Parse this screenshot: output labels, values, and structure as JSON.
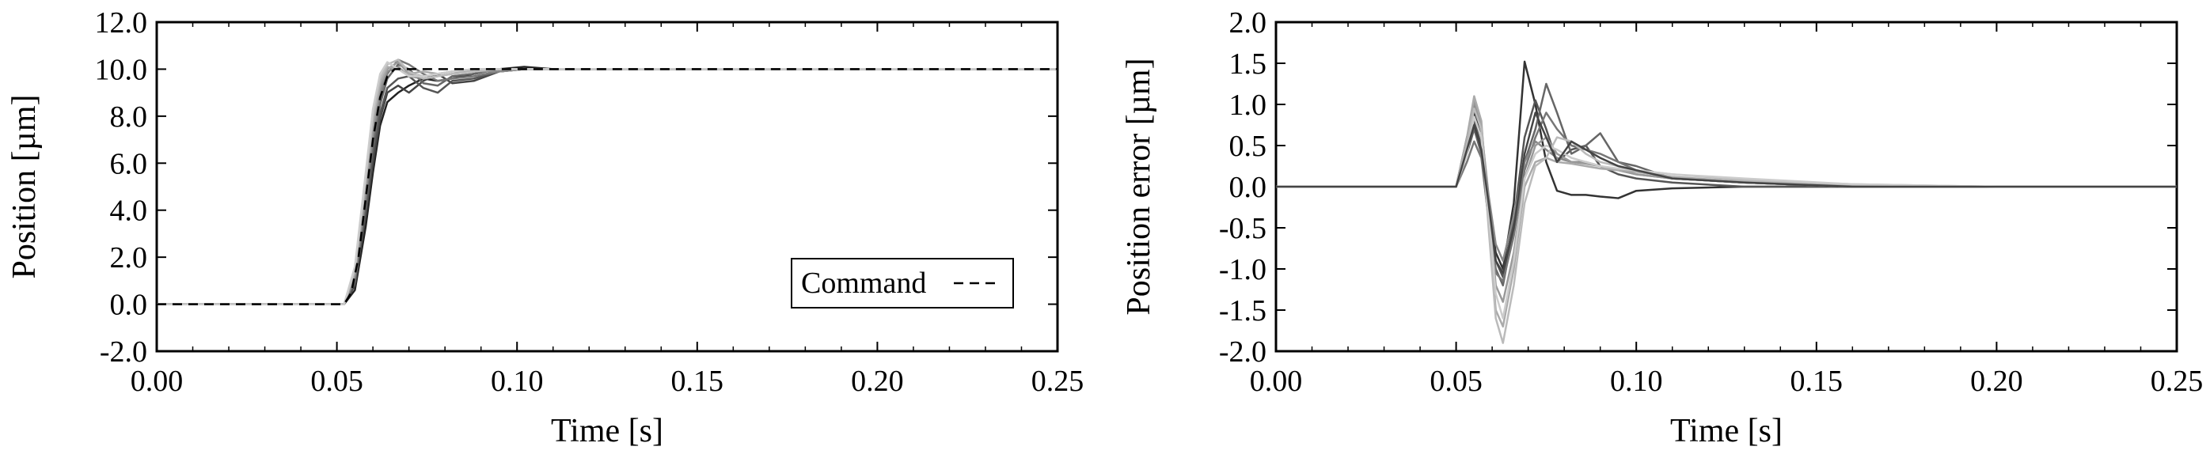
{
  "chart_data": [
    {
      "type": "line",
      "title": "",
      "xlabel": "Time [s]",
      "ylabel": "Position [µm]",
      "xlim": [
        0.0,
        0.25
      ],
      "ylim": [
        -2.0,
        12.0
      ],
      "x_ticks": [
        "0.00",
        "0.05",
        "0.10",
        "0.15",
        "0.20",
        "0.25"
      ],
      "x_tick_values": [
        0.0,
        0.05,
        0.1,
        0.15,
        0.2,
        0.25
      ],
      "y_ticks": [
        "-2.0",
        "0.0",
        "2.0",
        "4.0",
        "6.0",
        "8.0",
        "10.0",
        "12.0"
      ],
      "y_tick_values": [
        -2.0,
        0.0,
        2.0,
        4.0,
        6.0,
        8.0,
        10.0,
        12.0
      ],
      "grid": false,
      "legend": {
        "position": "bottom-right",
        "entries": [
          {
            "label": "Command",
            "style": "dashed"
          }
        ]
      },
      "command": {
        "style": "dashed",
        "x": [
          0.0,
          0.052,
          0.054,
          0.056,
          0.058,
          0.06,
          0.062,
          0.064,
          0.066,
          0.25
        ],
        "y": [
          0.0,
          0.0,
          0.5,
          2.0,
          4.5,
          7.0,
          8.8,
          9.7,
          10.0,
          10.0
        ]
      },
      "series": [
        {
          "color": "#222222",
          "x": [
            0.0,
            0.052,
            0.055,
            0.058,
            0.06,
            0.062,
            0.064,
            0.067,
            0.07,
            0.074,
            0.078,
            0.082,
            0.088,
            0.095,
            0.102,
            0.11,
            0.12,
            0.25
          ],
          "y": [
            0.0,
            0.0,
            0.6,
            3.3,
            5.6,
            7.6,
            8.6,
            9.0,
            9.3,
            9.6,
            9.5,
            9.6,
            9.8,
            10.0,
            10.1,
            10.0,
            10.0,
            10.0
          ]
        },
        {
          "color": "#444444",
          "x": [
            0.0,
            0.052,
            0.055,
            0.058,
            0.06,
            0.062,
            0.064,
            0.067,
            0.07,
            0.074,
            0.078,
            0.082,
            0.088,
            0.095,
            0.102,
            0.11,
            0.12,
            0.25
          ],
          "y": [
            0.0,
            0.0,
            0.8,
            3.8,
            6.0,
            7.9,
            9.0,
            9.3,
            9.0,
            9.5,
            9.8,
            9.4,
            9.5,
            9.9,
            10.0,
            10.0,
            10.0,
            10.0
          ]
        },
        {
          "color": "#555555",
          "x": [
            0.0,
            0.052,
            0.055,
            0.058,
            0.06,
            0.062,
            0.064,
            0.067,
            0.07,
            0.074,
            0.078,
            0.082,
            0.088,
            0.095,
            0.102,
            0.11,
            0.12,
            0.25
          ],
          "y": [
            0.0,
            0.0,
            0.9,
            4.0,
            6.4,
            8.1,
            9.2,
            9.6,
            9.7,
            9.2,
            9.0,
            9.5,
            9.6,
            9.9,
            10.0,
            10.0,
            10.0,
            10.0
          ]
        },
        {
          "color": "#666666",
          "x": [
            0.0,
            0.052,
            0.055,
            0.058,
            0.06,
            0.062,
            0.064,
            0.067,
            0.07,
            0.074,
            0.078,
            0.082,
            0.088,
            0.095,
            0.102,
            0.11,
            0.12,
            0.25
          ],
          "y": [
            0.0,
            0.0,
            1.0,
            4.3,
            6.7,
            8.5,
            9.6,
            10.2,
            10.0,
            9.4,
            9.3,
            9.7,
            9.8,
            10.0,
            10.0,
            10.0,
            10.0,
            10.0
          ]
        },
        {
          "color": "#777777",
          "x": [
            0.0,
            0.052,
            0.055,
            0.058,
            0.06,
            0.062,
            0.064,
            0.067,
            0.07,
            0.074,
            0.078,
            0.082,
            0.088,
            0.095,
            0.102,
            0.11,
            0.12,
            0.25
          ],
          "y": [
            0.0,
            0.0,
            1.1,
            4.5,
            7.0,
            8.8,
            9.8,
            10.4,
            10.2,
            9.8,
            9.5,
            9.6,
            9.7,
            9.9,
            10.0,
            10.0,
            10.0,
            10.0
          ]
        },
        {
          "color": "#888888",
          "x": [
            0.0,
            0.052,
            0.055,
            0.058,
            0.06,
            0.062,
            0.064,
            0.067,
            0.07,
            0.074,
            0.078,
            0.082,
            0.088,
            0.095,
            0.102,
            0.11,
            0.12,
            0.25
          ],
          "y": [
            0.0,
            0.0,
            1.2,
            4.7,
            7.2,
            9.0,
            9.9,
            10.1,
            9.7,
            9.6,
            9.7,
            9.8,
            9.9,
            9.9,
            10.0,
            10.0,
            10.0,
            10.0
          ]
        },
        {
          "color": "#999999",
          "x": [
            0.0,
            0.052,
            0.055,
            0.058,
            0.06,
            0.062,
            0.064,
            0.067,
            0.07,
            0.074,
            0.078,
            0.082,
            0.088,
            0.095,
            0.102,
            0.11,
            0.12,
            0.25
          ],
          "y": [
            0.0,
            0.0,
            1.3,
            5.0,
            7.5,
            9.2,
            10.0,
            10.3,
            9.8,
            9.7,
            9.8,
            9.9,
            9.9,
            10.0,
            10.0,
            10.0,
            10.0,
            10.0
          ]
        },
        {
          "color": "#aaaaaa",
          "x": [
            0.0,
            0.052,
            0.055,
            0.058,
            0.06,
            0.062,
            0.064,
            0.067,
            0.07,
            0.074,
            0.078,
            0.082,
            0.088,
            0.095,
            0.102,
            0.11,
            0.12,
            0.25
          ],
          "y": [
            0.0,
            0.0,
            1.4,
            5.2,
            7.8,
            9.4,
            10.1,
            10.0,
            9.8,
            9.9,
            9.8,
            9.9,
            10.0,
            10.0,
            10.0,
            10.0,
            10.0,
            10.0
          ]
        },
        {
          "color": "#bbbbbb",
          "x": [
            0.0,
            0.052,
            0.055,
            0.058,
            0.06,
            0.062,
            0.064,
            0.067,
            0.07,
            0.074,
            0.078,
            0.082,
            0.088,
            0.095,
            0.102,
            0.11,
            0.12,
            0.25
          ],
          "y": [
            0.0,
            0.0,
            1.5,
            5.4,
            8.0,
            9.6,
            10.2,
            10.4,
            9.9,
            9.6,
            9.7,
            9.8,
            9.9,
            10.0,
            10.0,
            10.0,
            10.0,
            10.0
          ]
        },
        {
          "color": "#cccccc",
          "x": [
            0.0,
            0.052,
            0.055,
            0.058,
            0.06,
            0.062,
            0.064,
            0.067,
            0.07,
            0.074,
            0.078,
            0.082,
            0.088,
            0.095,
            0.102,
            0.11,
            0.12,
            0.25
          ],
          "y": [
            0.0,
            0.0,
            1.6,
            5.6,
            8.3,
            9.8,
            10.3,
            10.0,
            9.7,
            9.7,
            9.8,
            9.9,
            10.0,
            10.0,
            10.0,
            10.0,
            10.0,
            10.0
          ]
        }
      ]
    },
    {
      "type": "line",
      "title": "",
      "xlabel": "Time [s]",
      "ylabel": "Position error [µm]",
      "xlim": [
        0.0,
        0.25
      ],
      "ylim": [
        -2.0,
        2.0
      ],
      "x_ticks": [
        "0.00",
        "0.05",
        "0.10",
        "0.15",
        "0.20",
        "0.25"
      ],
      "x_tick_values": [
        0.0,
        0.05,
        0.1,
        0.15,
        0.2,
        0.25
      ],
      "y_ticks": [
        "-2.0",
        "-1.5",
        "-1.0",
        "-0.5",
        "0.0",
        "0.5",
        "1.0",
        "1.5",
        "2.0"
      ],
      "y_tick_values": [
        -2.0,
        -1.5,
        -1.0,
        -0.5,
        0.0,
        0.5,
        1.0,
        1.5,
        2.0
      ],
      "grid": false,
      "series": [
        {
          "color": "#333333",
          "x": [
            0.0,
            0.05,
            0.053,
            0.055,
            0.057,
            0.059,
            0.061,
            0.063,
            0.066,
            0.069,
            0.072,
            0.075,
            0.078,
            0.082,
            0.086,
            0.09,
            0.095,
            0.1,
            0.11,
            0.13,
            0.16,
            0.2,
            0.25
          ],
          "y": [
            0.0,
            0.0,
            0.6,
            0.9,
            0.6,
            -0.2,
            -0.8,
            -1.0,
            -0.2,
            1.52,
            1.0,
            0.3,
            -0.05,
            -0.1,
            -0.1,
            -0.12,
            -0.14,
            -0.05,
            -0.02,
            0.0,
            0.0,
            0.0,
            0.0
          ]
        },
        {
          "color": "#555555",
          "x": [
            0.0,
            0.05,
            0.053,
            0.055,
            0.057,
            0.059,
            0.061,
            0.063,
            0.066,
            0.069,
            0.072,
            0.075,
            0.078,
            0.082,
            0.086,
            0.09,
            0.095,
            0.1,
            0.11,
            0.13,
            0.16,
            0.2,
            0.25
          ],
          "y": [
            0.0,
            0.0,
            0.5,
            0.8,
            0.5,
            -0.3,
            -0.9,
            -1.1,
            -0.4,
            0.6,
            1.05,
            0.7,
            0.3,
            0.45,
            0.5,
            0.25,
            0.15,
            0.1,
            0.05,
            0.0,
            0.0,
            0.0,
            0.0
          ]
        },
        {
          "color": "#666666",
          "x": [
            0.0,
            0.05,
            0.053,
            0.055,
            0.057,
            0.059,
            0.061,
            0.063,
            0.066,
            0.069,
            0.072,
            0.075,
            0.078,
            0.082,
            0.086,
            0.09,
            0.095,
            0.1,
            0.11,
            0.13,
            0.16,
            0.2,
            0.25
          ],
          "y": [
            0.0,
            0.0,
            0.4,
            0.7,
            0.4,
            -0.4,
            -1.0,
            -1.2,
            -0.5,
            0.3,
            0.7,
            1.25,
            0.9,
            0.4,
            0.5,
            0.65,
            0.3,
            0.25,
            0.1,
            0.05,
            0.0,
            0.0,
            0.0
          ]
        },
        {
          "color": "#777777",
          "x": [
            0.0,
            0.05,
            0.053,
            0.055,
            0.057,
            0.059,
            0.061,
            0.063,
            0.066,
            0.069,
            0.072,
            0.075,
            0.078,
            0.082,
            0.086,
            0.09,
            0.095,
            0.1,
            0.11,
            0.13,
            0.16,
            0.2,
            0.25
          ],
          "y": [
            0.0,
            0.0,
            0.3,
            0.55,
            0.35,
            -0.4,
            -1.05,
            -1.15,
            -0.6,
            0.2,
            0.6,
            0.9,
            0.7,
            0.5,
            0.45,
            0.4,
            0.3,
            0.2,
            0.1,
            0.05,
            0.0,
            0.0,
            0.0
          ]
        },
        {
          "color": "#888888",
          "x": [
            0.0,
            0.05,
            0.053,
            0.055,
            0.057,
            0.059,
            0.061,
            0.063,
            0.066,
            0.069,
            0.072,
            0.075,
            0.078,
            0.082,
            0.086,
            0.09,
            0.095,
            0.1,
            0.11,
            0.13,
            0.16,
            0.2,
            0.25
          ],
          "y": [
            0.0,
            0.0,
            0.5,
            1.0,
            0.7,
            -0.1,
            -0.7,
            -0.9,
            -0.35,
            0.3,
            0.55,
            0.45,
            0.35,
            0.3,
            0.3,
            0.25,
            0.2,
            0.15,
            0.1,
            0.05,
            0.0,
            0.0,
            0.0
          ]
        },
        {
          "color": "#999999",
          "x": [
            0.0,
            0.05,
            0.053,
            0.055,
            0.057,
            0.059,
            0.061,
            0.063,
            0.066,
            0.069,
            0.072,
            0.075,
            0.078,
            0.082,
            0.086,
            0.09,
            0.095,
            0.1,
            0.11,
            0.13,
            0.16,
            0.2,
            0.25
          ],
          "y": [
            0.0,
            0.0,
            0.55,
            1.05,
            0.75,
            -0.2,
            -1.2,
            -1.4,
            -0.8,
            0.1,
            0.5,
            0.6,
            0.4,
            0.3,
            0.28,
            0.25,
            0.2,
            0.15,
            0.1,
            0.05,
            0.0,
            0.0,
            0.0
          ]
        },
        {
          "color": "#aaaaaa",
          "x": [
            0.0,
            0.05,
            0.053,
            0.055,
            0.057,
            0.059,
            0.061,
            0.063,
            0.066,
            0.069,
            0.072,
            0.075,
            0.078,
            0.082,
            0.086,
            0.09,
            0.095,
            0.1,
            0.11,
            0.13,
            0.16,
            0.2,
            0.25
          ],
          "y": [
            0.0,
            0.0,
            0.6,
            1.1,
            0.8,
            -0.4,
            -1.5,
            -1.7,
            -1.0,
            0.0,
            0.3,
            0.35,
            0.3,
            0.28,
            0.25,
            0.22,
            0.2,
            0.18,
            0.12,
            0.06,
            0.02,
            0.0,
            0.0
          ]
        },
        {
          "color": "#bbbbbb",
          "x": [
            0.0,
            0.05,
            0.053,
            0.055,
            0.057,
            0.059,
            0.061,
            0.063,
            0.066,
            0.069,
            0.072,
            0.075,
            0.078,
            0.082,
            0.086,
            0.09,
            0.095,
            0.1,
            0.11,
            0.13,
            0.16,
            0.2,
            0.25
          ],
          "y": [
            0.0,
            0.0,
            0.5,
            0.95,
            0.7,
            -0.5,
            -1.6,
            -1.9,
            -1.2,
            -0.2,
            0.25,
            0.35,
            0.6,
            0.55,
            0.4,
            0.3,
            0.25,
            0.2,
            0.15,
            0.08,
            0.03,
            0.0,
            0.0
          ]
        },
        {
          "color": "#cccccc",
          "x": [
            0.0,
            0.05,
            0.053,
            0.055,
            0.057,
            0.059,
            0.061,
            0.063,
            0.066,
            0.069,
            0.072,
            0.075,
            0.078,
            0.082,
            0.086,
            0.09,
            0.095,
            0.1,
            0.11,
            0.13,
            0.16,
            0.2,
            0.25
          ],
          "y": [
            0.0,
            0.0,
            0.4,
            0.85,
            0.6,
            -0.3,
            -1.3,
            -1.6,
            -0.9,
            0.1,
            0.4,
            0.5,
            0.45,
            0.35,
            0.3,
            0.25,
            0.22,
            0.2,
            0.15,
            0.1,
            0.03,
            0.0,
            0.0
          ]
        },
        {
          "color": "#444444",
          "x": [
            0.0,
            0.05,
            0.053,
            0.055,
            0.057,
            0.059,
            0.061,
            0.063,
            0.066,
            0.069,
            0.072,
            0.075,
            0.078,
            0.082,
            0.086,
            0.09,
            0.095,
            0.1,
            0.11,
            0.13,
            0.16,
            0.2,
            0.25
          ],
          "y": [
            0.0,
            0.0,
            0.45,
            0.75,
            0.45,
            -0.2,
            -0.9,
            -1.05,
            -0.5,
            0.4,
            0.9,
            0.6,
            0.3,
            0.55,
            0.45,
            0.35,
            0.25,
            0.2,
            0.1,
            0.05,
            0.0,
            0.0,
            0.0
          ]
        }
      ]
    }
  ]
}
